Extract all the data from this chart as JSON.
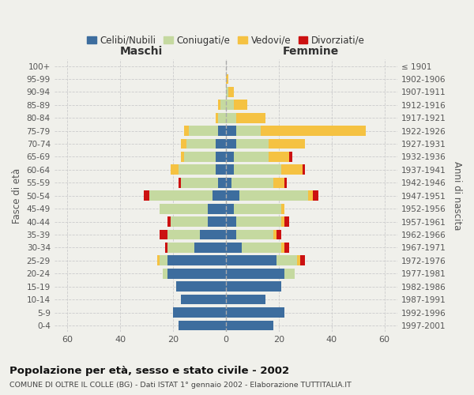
{
  "age_groups": [
    "0-4",
    "5-9",
    "10-14",
    "15-19",
    "20-24",
    "25-29",
    "30-34",
    "35-39",
    "40-44",
    "45-49",
    "50-54",
    "55-59",
    "60-64",
    "65-69",
    "70-74",
    "75-79",
    "80-84",
    "85-89",
    "90-94",
    "95-99",
    "100+"
  ],
  "birth_years": [
    "1997-2001",
    "1992-1996",
    "1987-1991",
    "1982-1986",
    "1977-1981",
    "1972-1976",
    "1967-1971",
    "1962-1966",
    "1957-1961",
    "1952-1956",
    "1947-1951",
    "1942-1946",
    "1937-1941",
    "1932-1936",
    "1927-1931",
    "1922-1926",
    "1917-1921",
    "1912-1916",
    "1907-1911",
    "1902-1906",
    "≤ 1901"
  ],
  "male": {
    "celibi": [
      18,
      20,
      17,
      19,
      22,
      22,
      12,
      10,
      7,
      7,
      5,
      3,
      4,
      4,
      4,
      3,
      0,
      0,
      0,
      0,
      0
    ],
    "coniugati": [
      0,
      0,
      0,
      0,
      2,
      3,
      10,
      12,
      14,
      18,
      24,
      14,
      14,
      12,
      11,
      11,
      3,
      2,
      0,
      0,
      0
    ],
    "vedovi": [
      0,
      0,
      0,
      0,
      0,
      1,
      0,
      0,
      0,
      0,
      0,
      0,
      3,
      1,
      2,
      2,
      1,
      1,
      0,
      0,
      0
    ],
    "divorziati": [
      0,
      0,
      0,
      0,
      0,
      0,
      1,
      3,
      1,
      0,
      2,
      1,
      0,
      0,
      0,
      0,
      0,
      0,
      0,
      0,
      0
    ]
  },
  "female": {
    "nubili": [
      18,
      22,
      15,
      21,
      22,
      19,
      6,
      4,
      4,
      3,
      5,
      2,
      3,
      3,
      4,
      4,
      0,
      0,
      0,
      0,
      0
    ],
    "coniugate": [
      0,
      0,
      0,
      0,
      4,
      8,
      15,
      14,
      17,
      18,
      26,
      16,
      18,
      13,
      12,
      9,
      4,
      3,
      1,
      0,
      0
    ],
    "vedove": [
      0,
      0,
      0,
      0,
      0,
      1,
      1,
      1,
      1,
      1,
      2,
      4,
      8,
      8,
      14,
      40,
      11,
      5,
      2,
      1,
      0
    ],
    "divorziate": [
      0,
      0,
      0,
      0,
      0,
      2,
      2,
      2,
      2,
      0,
      2,
      1,
      1,
      1,
      0,
      0,
      0,
      0,
      0,
      0,
      0
    ]
  },
  "colors": {
    "celibi": "#3d6d9e",
    "coniugati": "#c5d9a0",
    "vedovi": "#f5c242",
    "divorziati": "#cc1111"
  },
  "legend_labels": [
    "Celibi/Nubili",
    "Coniugati/e",
    "Vedovi/e",
    "Divorziati/e"
  ],
  "xlim": 65,
  "title": "Popolazione per età, sesso e stato civile - 2002",
  "subtitle": "COMUNE DI OLTRE IL COLLE (BG) - Dati ISTAT 1° gennaio 2002 - Elaborazione TUTTITALIA.IT",
  "xlabel_left": "Maschi",
  "xlabel_right": "Femmine",
  "ylabel_left": "Fasce di età",
  "ylabel_right": "Anni di nascita",
  "bg_color": "#f0f0eb",
  "grid_color": "#cccccc"
}
